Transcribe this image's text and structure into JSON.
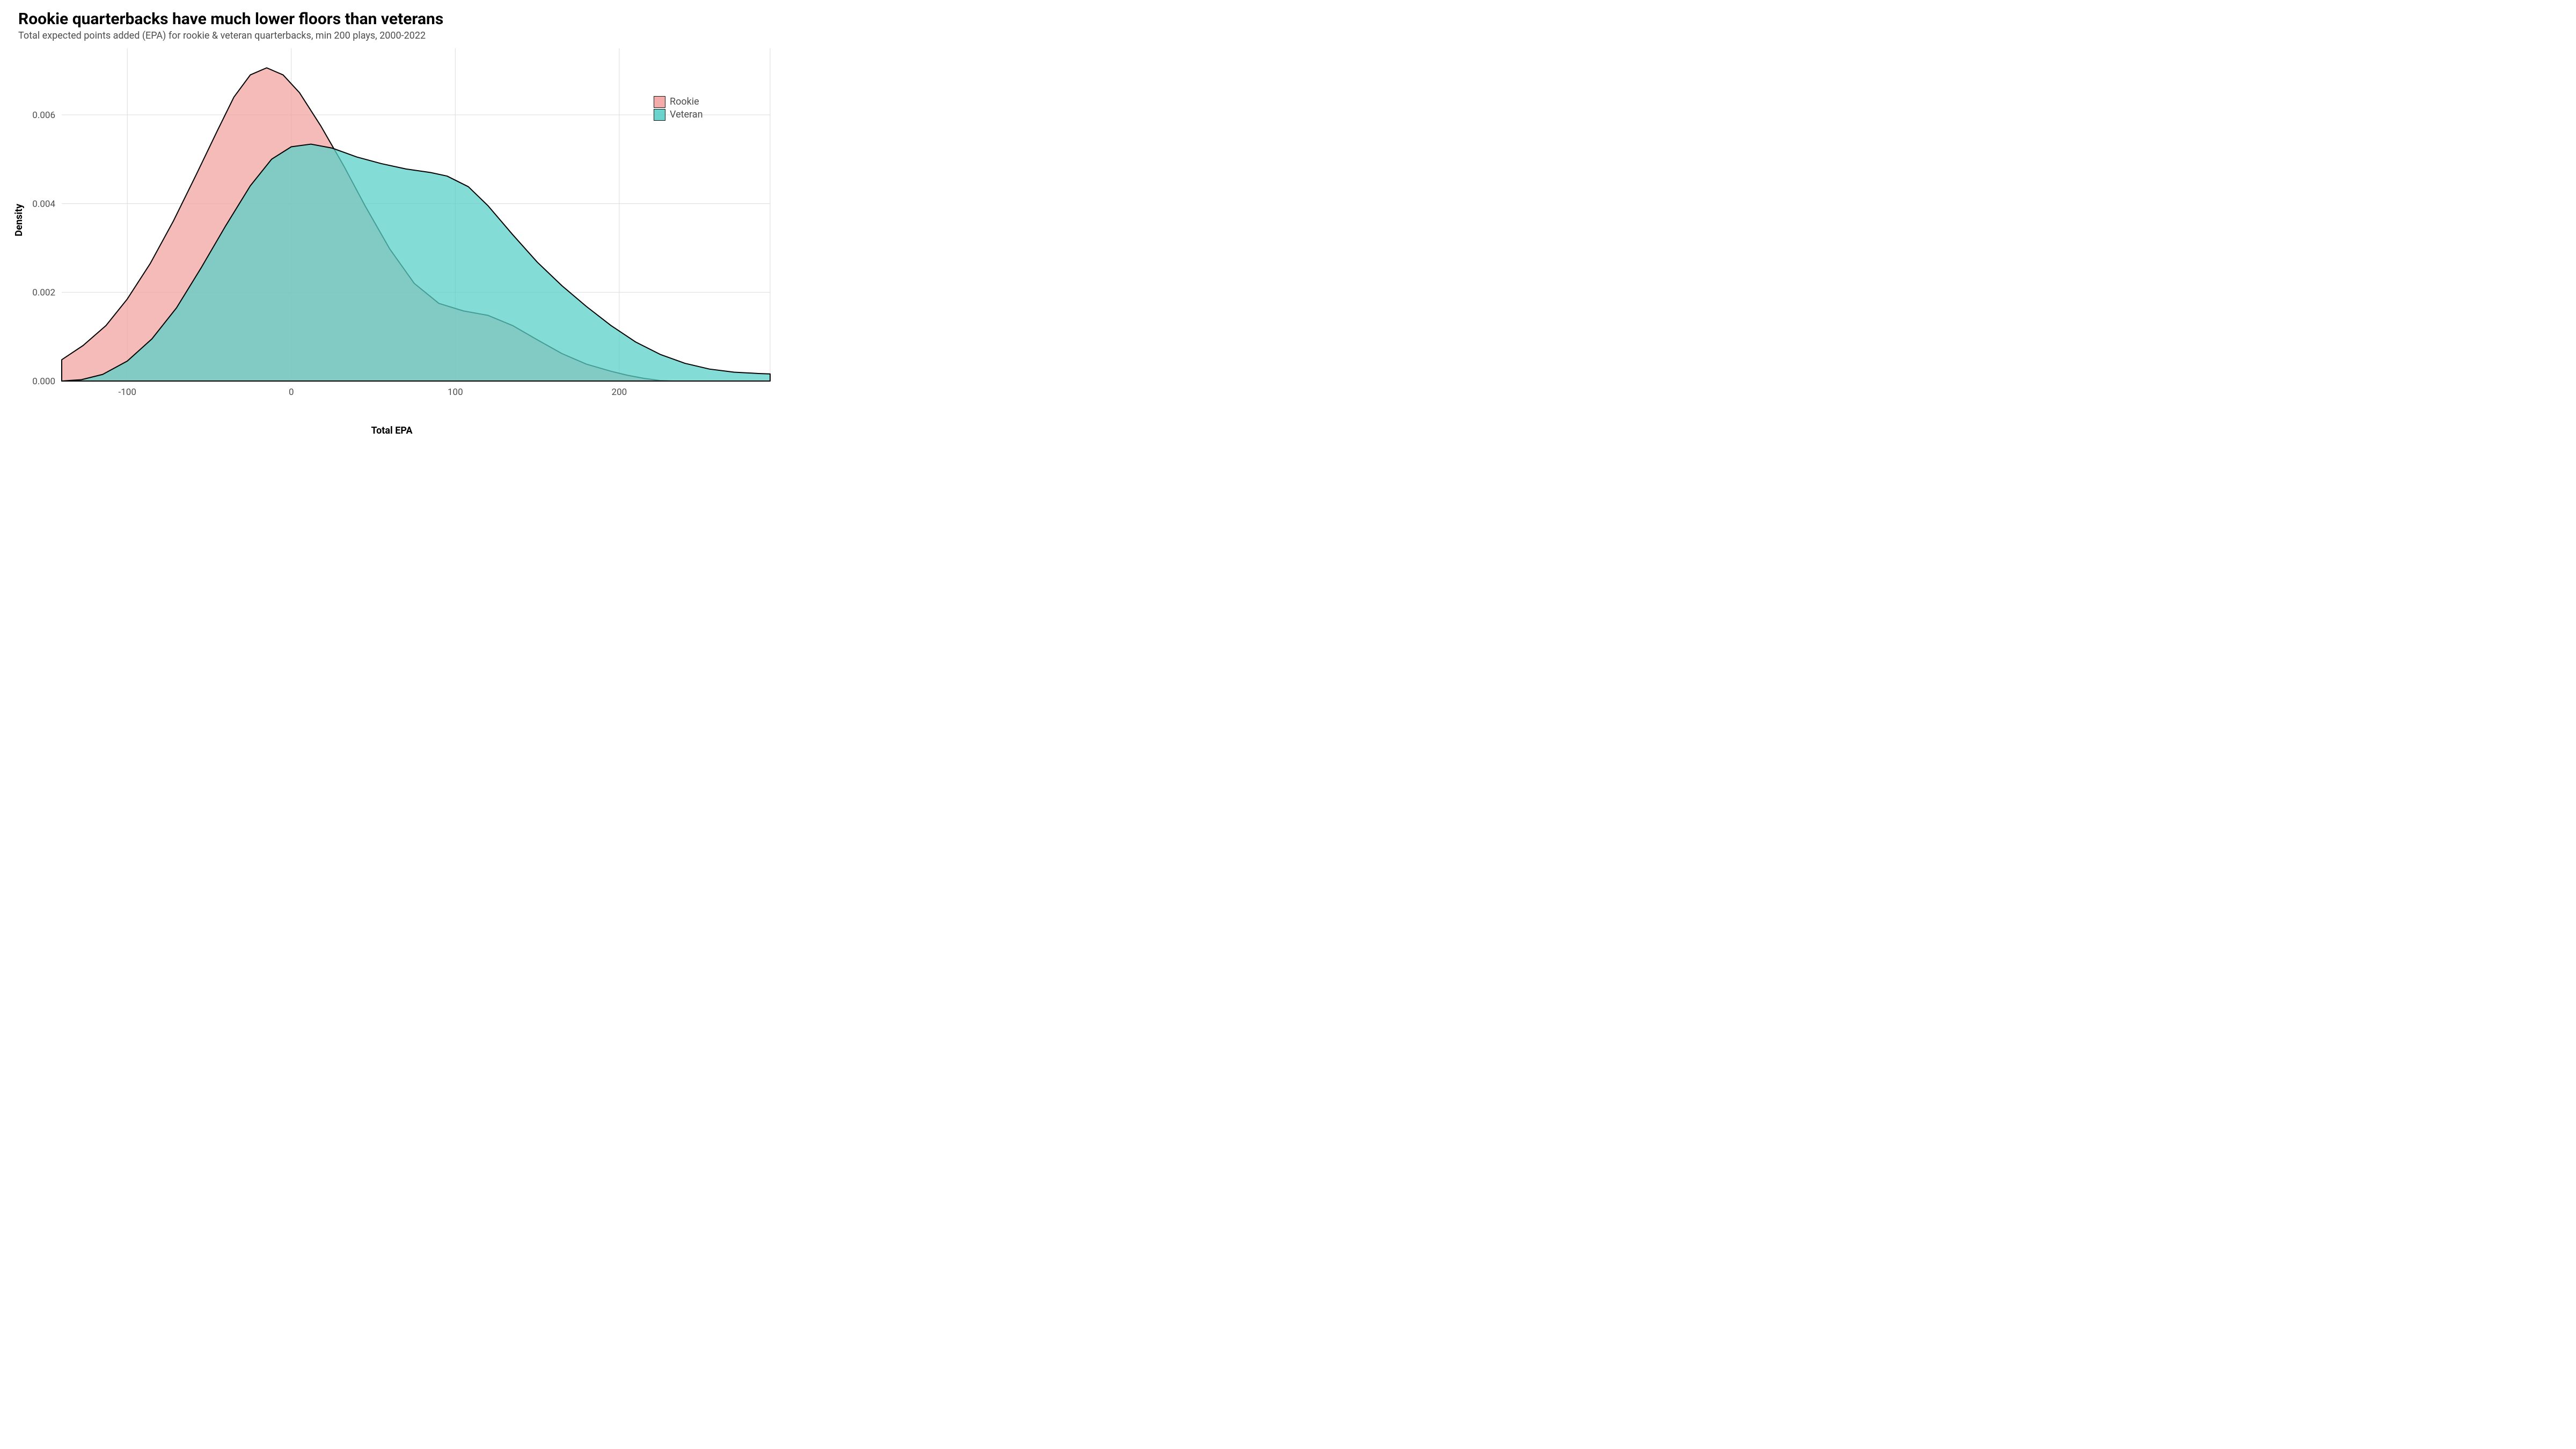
{
  "title": "Rookie quarterbacks have much lower floors than veterans",
  "subtitle": "Total expected points added (EPA) for rookie & veteran quarterbacks, min 200 plays, 2000-2022",
  "xlabel": "Total EPA",
  "ylabel": "Density",
  "chart": {
    "type": "density",
    "xlim": [
      -140,
      292
    ],
    "ylim": [
      0,
      0.0075
    ],
    "x_ticks": [
      -100,
      0,
      100,
      200
    ],
    "y_ticks": [
      0.0,
      0.002,
      0.004,
      0.006
    ],
    "y_tick_labels": [
      "0.000",
      "0.002",
      "0.004",
      "0.006"
    ],
    "background_color": "#ffffff",
    "grid_color": "#dcdcdc",
    "grid_width": 1,
    "stroke_color": "#000000",
    "stroke_width": 2,
    "fill_opacity": 0.75,
    "series": [
      {
        "name": "Rookie",
        "color": "#f2a4a0",
        "points": [
          [
            -140,
            0.00048
          ],
          [
            -127,
            0.0008
          ],
          [
            -113,
            0.00125
          ],
          [
            -100,
            0.00185
          ],
          [
            -86,
            0.00265
          ],
          [
            -72,
            0.0036
          ],
          [
            -58,
            0.00465
          ],
          [
            -45,
            0.00565
          ],
          [
            -35,
            0.0064
          ],
          [
            -25,
            0.0069
          ],
          [
            -15,
            0.00706
          ],
          [
            -5,
            0.0069
          ],
          [
            5,
            0.0065
          ],
          [
            18,
            0.00575
          ],
          [
            32,
            0.00485
          ],
          [
            45,
            0.00395
          ],
          [
            60,
            0.00298
          ],
          [
            75,
            0.0022
          ],
          [
            90,
            0.00175
          ],
          [
            105,
            0.00158
          ],
          [
            120,
            0.00148
          ],
          [
            135,
            0.00125
          ],
          [
            150,
            0.00093
          ],
          [
            165,
            0.00062
          ],
          [
            180,
            0.00038
          ],
          [
            195,
            0.00022
          ],
          [
            205,
            0.00013
          ],
          [
            215,
            6e-05
          ],
          [
            225,
            1e-05
          ],
          [
            232,
            0.0
          ]
        ]
      },
      {
        "name": "Veteran",
        "color": "#5ad0c8",
        "points": [
          [
            -140,
            0.0
          ],
          [
            -128,
            3e-05
          ],
          [
            -115,
            0.00015
          ],
          [
            -100,
            0.00045
          ],
          [
            -85,
            0.00095
          ],
          [
            -70,
            0.00165
          ],
          [
            -55,
            0.00255
          ],
          [
            -40,
            0.0035
          ],
          [
            -25,
            0.0044
          ],
          [
            -12,
            0.005
          ],
          [
            0,
            0.00528
          ],
          [
            12,
            0.00534
          ],
          [
            25,
            0.00525
          ],
          [
            40,
            0.00505
          ],
          [
            55,
            0.0049
          ],
          [
            70,
            0.00478
          ],
          [
            85,
            0.0047
          ],
          [
            95,
            0.00462
          ],
          [
            108,
            0.00438
          ],
          [
            120,
            0.00395
          ],
          [
            135,
            0.0033
          ],
          [
            150,
            0.00268
          ],
          [
            165,
            0.00215
          ],
          [
            180,
            0.00168
          ],
          [
            195,
            0.00125
          ],
          [
            210,
            0.00088
          ],
          [
            225,
            0.0006
          ],
          [
            240,
            0.0004
          ],
          [
            255,
            0.00027
          ],
          [
            270,
            0.0002
          ],
          [
            285,
            0.00017
          ],
          [
            292,
            0.00016
          ]
        ]
      }
    ],
    "legend": {
      "items": [
        "Rookie",
        "Veteran"
      ],
      "position": "right-inside",
      "label_fontsize": 18,
      "label_color": "#4d4d4d"
    },
    "title_fontsize": 30,
    "subtitle_fontsize": 18,
    "axis_label_fontsize": 18,
    "tick_fontsize": 17,
    "tick_color": "#4d4d4d"
  }
}
